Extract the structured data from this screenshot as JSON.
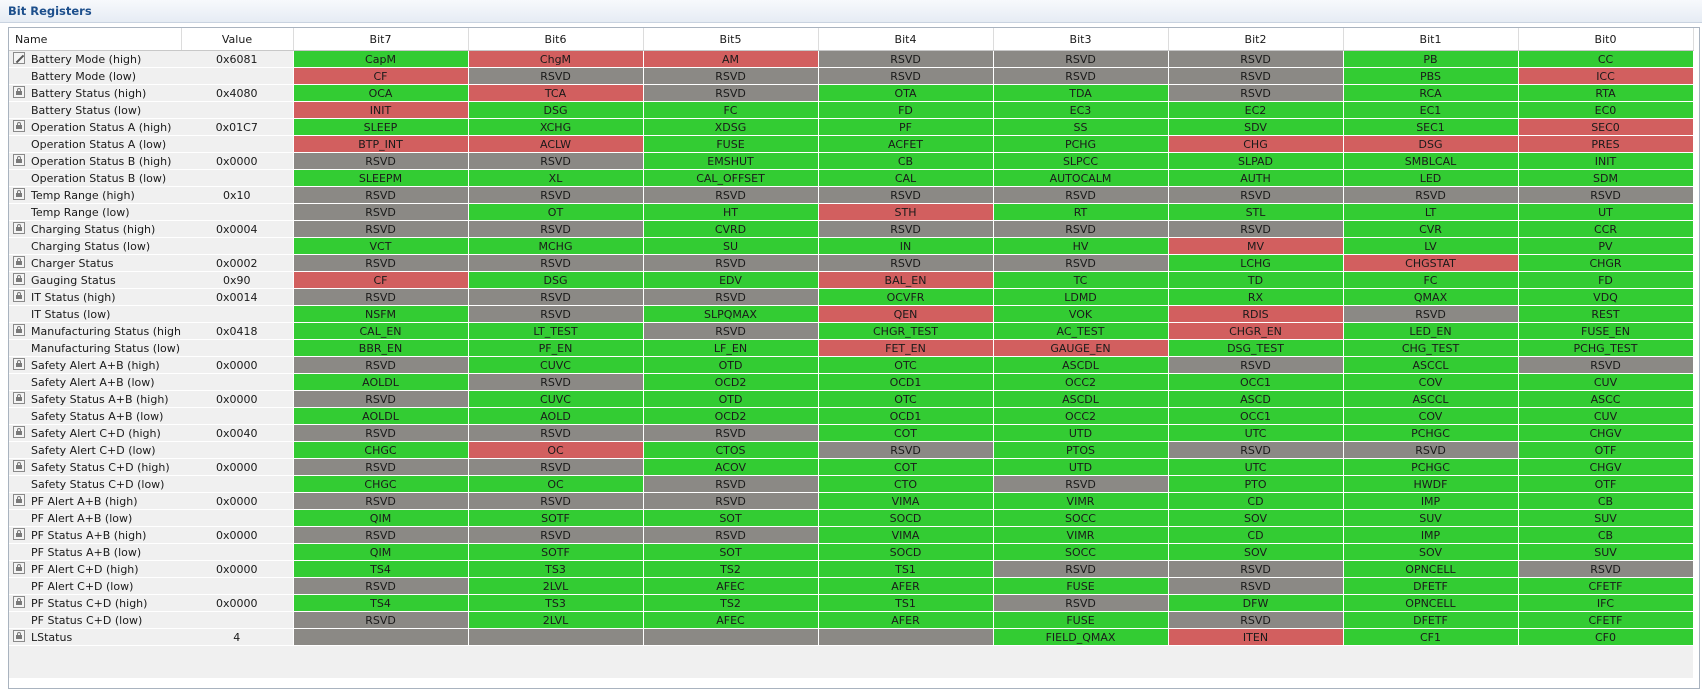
{
  "panel": {
    "title": "Bit Registers"
  },
  "columns": [
    "Name",
    "Value",
    "Bit7",
    "Bit6",
    "Bit5",
    "Bit4",
    "Bit3",
    "Bit2",
    "Bit1",
    "Bit0"
  ],
  "colors": {
    "set": "#33cc33",
    "flag": "#d25f5f",
    "reserved": "#8b8985"
  },
  "rows": [
    {
      "name": "Battery Mode (high)",
      "value": "0x6081",
      "icon": "edit-icon",
      "bits": [
        [
          "CapM",
          "g"
        ],
        [
          "ChgM",
          "r"
        ],
        [
          "AM",
          "r"
        ],
        [
          "RSVD",
          "x"
        ],
        [
          "RSVD",
          "x"
        ],
        [
          "RSVD",
          "x"
        ],
        [
          "PB",
          "g"
        ],
        [
          "CC",
          "g"
        ]
      ]
    },
    {
      "name": "Battery Mode (low)",
      "value": "",
      "icon": "",
      "bits": [
        [
          "CF",
          "r"
        ],
        [
          "RSVD",
          "x"
        ],
        [
          "RSVD",
          "x"
        ],
        [
          "RSVD",
          "x"
        ],
        [
          "RSVD",
          "x"
        ],
        [
          "RSVD",
          "x"
        ],
        [
          "PBS",
          "g"
        ],
        [
          "ICC",
          "r"
        ]
      ]
    },
    {
      "name": "Battery Status (high)",
      "value": "0x4080",
      "icon": "lock-icon",
      "bits": [
        [
          "OCA",
          "g"
        ],
        [
          "TCA",
          "r"
        ],
        [
          "RSVD",
          "x"
        ],
        [
          "OTA",
          "g"
        ],
        [
          "TDA",
          "g"
        ],
        [
          "RSVD",
          "x"
        ],
        [
          "RCA",
          "g"
        ],
        [
          "RTA",
          "g"
        ]
      ]
    },
    {
      "name": "Battery Status (low)",
      "value": "",
      "icon": "",
      "bits": [
        [
          "INIT",
          "r"
        ],
        [
          "DSG",
          "g"
        ],
        [
          "FC",
          "g"
        ],
        [
          "FD",
          "g"
        ],
        [
          "EC3",
          "g"
        ],
        [
          "EC2",
          "g"
        ],
        [
          "EC1",
          "g"
        ],
        [
          "EC0",
          "g"
        ]
      ]
    },
    {
      "name": "Operation Status A (high)",
      "value": "0x01C7",
      "icon": "lock-icon",
      "bits": [
        [
          "SLEEP",
          "g"
        ],
        [
          "XCHG",
          "g"
        ],
        [
          "XDSG",
          "g"
        ],
        [
          "PF",
          "g"
        ],
        [
          "SS",
          "g"
        ],
        [
          "SDV",
          "g"
        ],
        [
          "SEC1",
          "g"
        ],
        [
          "SEC0",
          "r"
        ]
      ]
    },
    {
      "name": "Operation Status A (low)",
      "value": "",
      "icon": "",
      "bits": [
        [
          "BTP_INT",
          "r"
        ],
        [
          "ACLW",
          "r"
        ],
        [
          "FUSE",
          "g"
        ],
        [
          "ACFET",
          "g"
        ],
        [
          "PCHG",
          "g"
        ],
        [
          "CHG",
          "r"
        ],
        [
          "DSG",
          "r"
        ],
        [
          "PRES",
          "r"
        ]
      ]
    },
    {
      "name": "Operation Status B (high)",
      "value": "0x0000",
      "icon": "lock-icon",
      "bits": [
        [
          "RSVD",
          "x"
        ],
        [
          "RSVD",
          "x"
        ],
        [
          "EMSHUT",
          "g"
        ],
        [
          "CB",
          "g"
        ],
        [
          "SLPCC",
          "g"
        ],
        [
          "SLPAD",
          "g"
        ],
        [
          "SMBLCAL",
          "g"
        ],
        [
          "INIT",
          "g"
        ]
      ]
    },
    {
      "name": "Operation Status B (low)",
      "value": "",
      "icon": "",
      "bits": [
        [
          "SLEEPM",
          "g"
        ],
        [
          "XL",
          "g"
        ],
        [
          "CAL_OFFSET",
          "g"
        ],
        [
          "CAL",
          "g"
        ],
        [
          "AUTOCALM",
          "g"
        ],
        [
          "AUTH",
          "g"
        ],
        [
          "LED",
          "g"
        ],
        [
          "SDM",
          "g"
        ]
      ]
    },
    {
      "name": "Temp Range (high)",
      "value": "0x10",
      "icon": "lock-icon",
      "bits": [
        [
          "RSVD",
          "x"
        ],
        [
          "RSVD",
          "x"
        ],
        [
          "RSVD",
          "x"
        ],
        [
          "RSVD",
          "x"
        ],
        [
          "RSVD",
          "x"
        ],
        [
          "RSVD",
          "x"
        ],
        [
          "RSVD",
          "x"
        ],
        [
          "RSVD",
          "x"
        ]
      ]
    },
    {
      "name": "Temp Range (low)",
      "value": "",
      "icon": "",
      "bits": [
        [
          "RSVD",
          "x"
        ],
        [
          "OT",
          "g"
        ],
        [
          "HT",
          "g"
        ],
        [
          "STH",
          "r"
        ],
        [
          "RT",
          "g"
        ],
        [
          "STL",
          "g"
        ],
        [
          "LT",
          "g"
        ],
        [
          "UT",
          "g"
        ]
      ]
    },
    {
      "name": "Charging Status (high)",
      "value": "0x0004",
      "icon": "lock-icon",
      "bits": [
        [
          "RSVD",
          "x"
        ],
        [
          "RSVD",
          "x"
        ],
        [
          "CVRD",
          "g"
        ],
        [
          "RSVD",
          "x"
        ],
        [
          "RSVD",
          "x"
        ],
        [
          "RSVD",
          "x"
        ],
        [
          "CVR",
          "g"
        ],
        [
          "CCR",
          "g"
        ]
      ]
    },
    {
      "name": "Charging Status (low)",
      "value": "",
      "icon": "",
      "bits": [
        [
          "VCT",
          "g"
        ],
        [
          "MCHG",
          "g"
        ],
        [
          "SU",
          "g"
        ],
        [
          "IN",
          "g"
        ],
        [
          "HV",
          "g"
        ],
        [
          "MV",
          "r"
        ],
        [
          "LV",
          "g"
        ],
        [
          "PV",
          "g"
        ]
      ]
    },
    {
      "name": "Charger Status",
      "value": "0x0002",
      "icon": "lock-icon",
      "bits": [
        [
          "RSVD",
          "x"
        ],
        [
          "RSVD",
          "x"
        ],
        [
          "RSVD",
          "x"
        ],
        [
          "RSVD",
          "x"
        ],
        [
          "RSVD",
          "x"
        ],
        [
          "LCHG",
          "g"
        ],
        [
          "CHGSTAT",
          "r"
        ],
        [
          "CHGR",
          "g"
        ]
      ]
    },
    {
      "name": "Gauging Status",
      "value": "0x90",
      "icon": "lock-icon",
      "bits": [
        [
          "CF",
          "r"
        ],
        [
          "DSG",
          "g"
        ],
        [
          "EDV",
          "g"
        ],
        [
          "BAL_EN",
          "r"
        ],
        [
          "TC",
          "g"
        ],
        [
          "TD",
          "g"
        ],
        [
          "FC",
          "g"
        ],
        [
          "FD",
          "g"
        ]
      ]
    },
    {
      "name": "IT Status (high)",
      "value": "0x0014",
      "icon": "lock-icon",
      "bits": [
        [
          "RSVD",
          "x"
        ],
        [
          "RSVD",
          "x"
        ],
        [
          "RSVD",
          "x"
        ],
        [
          "OCVFR",
          "g"
        ],
        [
          "LDMD",
          "g"
        ],
        [
          "RX",
          "g"
        ],
        [
          "QMAX",
          "g"
        ],
        [
          "VDQ",
          "g"
        ]
      ]
    },
    {
      "name": "IT Status (low)",
      "value": "",
      "icon": "",
      "bits": [
        [
          "NSFM",
          "g"
        ],
        [
          "RSVD",
          "x"
        ],
        [
          "SLPQMAX",
          "g"
        ],
        [
          "QEN",
          "r"
        ],
        [
          "VOK",
          "g"
        ],
        [
          "RDIS",
          "r"
        ],
        [
          "RSVD",
          "x"
        ],
        [
          "REST",
          "g"
        ]
      ]
    },
    {
      "name": "Manufacturing Status (high)",
      "value": "0x0418",
      "icon": "lock-icon",
      "bits": [
        [
          "CAL_EN",
          "g"
        ],
        [
          "LT_TEST",
          "g"
        ],
        [
          "RSVD",
          "x"
        ],
        [
          "CHGR_TEST",
          "g"
        ],
        [
          "AC_TEST",
          "g"
        ],
        [
          "CHGR_EN",
          "r"
        ],
        [
          "LED_EN",
          "g"
        ],
        [
          "FUSE_EN",
          "g"
        ]
      ]
    },
    {
      "name": "Manufacturing Status (low)",
      "value": "",
      "icon": "",
      "bits": [
        [
          "BBR_EN",
          "g"
        ],
        [
          "PF_EN",
          "g"
        ],
        [
          "LF_EN",
          "g"
        ],
        [
          "FET_EN",
          "r"
        ],
        [
          "GAUGE_EN",
          "r"
        ],
        [
          "DSG_TEST",
          "g"
        ],
        [
          "CHG_TEST",
          "g"
        ],
        [
          "PCHG_TEST",
          "g"
        ]
      ]
    },
    {
      "name": "Safety Alert A+B (high)",
      "value": "0x0000",
      "icon": "lock-icon",
      "bits": [
        [
          "RSVD",
          "x"
        ],
        [
          "CUVC",
          "g"
        ],
        [
          "OTD",
          "g"
        ],
        [
          "OTC",
          "g"
        ],
        [
          "ASCDL",
          "g"
        ],
        [
          "RSVD",
          "x"
        ],
        [
          "ASCCL",
          "g"
        ],
        [
          "RSVD",
          "x"
        ]
      ]
    },
    {
      "name": "Safety Alert A+B (low)",
      "value": "",
      "icon": "",
      "bits": [
        [
          "AOLDL",
          "g"
        ],
        [
          "RSVD",
          "x"
        ],
        [
          "OCD2",
          "g"
        ],
        [
          "OCD1",
          "g"
        ],
        [
          "OCC2",
          "g"
        ],
        [
          "OCC1",
          "g"
        ],
        [
          "COV",
          "g"
        ],
        [
          "CUV",
          "g"
        ]
      ]
    },
    {
      "name": "Safety Status A+B (high)",
      "value": "0x0000",
      "icon": "lock-icon",
      "bits": [
        [
          "RSVD",
          "x"
        ],
        [
          "CUVC",
          "g"
        ],
        [
          "OTD",
          "g"
        ],
        [
          "OTC",
          "g"
        ],
        [
          "ASCDL",
          "g"
        ],
        [
          "ASCD",
          "g"
        ],
        [
          "ASCCL",
          "g"
        ],
        [
          "ASCC",
          "g"
        ]
      ]
    },
    {
      "name": "Safety Status A+B (low)",
      "value": "",
      "icon": "",
      "bits": [
        [
          "AOLDL",
          "g"
        ],
        [
          "AOLD",
          "g"
        ],
        [
          "OCD2",
          "g"
        ],
        [
          "OCD1",
          "g"
        ],
        [
          "OCC2",
          "g"
        ],
        [
          "OCC1",
          "g"
        ],
        [
          "COV",
          "g"
        ],
        [
          "CUV",
          "g"
        ]
      ]
    },
    {
      "name": "Safety Alert C+D (high)",
      "value": "0x0040",
      "icon": "lock-icon",
      "bits": [
        [
          "RSVD",
          "x"
        ],
        [
          "RSVD",
          "x"
        ],
        [
          "RSVD",
          "x"
        ],
        [
          "COT",
          "g"
        ],
        [
          "UTD",
          "g"
        ],
        [
          "UTC",
          "g"
        ],
        [
          "PCHGC",
          "g"
        ],
        [
          "CHGV",
          "g"
        ]
      ]
    },
    {
      "name": "Safety Alert C+D (low)",
      "value": "",
      "icon": "",
      "bits": [
        [
          "CHGC",
          "g"
        ],
        [
          "OC",
          "r"
        ],
        [
          "CTOS",
          "g"
        ],
        [
          "RSVD",
          "x"
        ],
        [
          "PTOS",
          "g"
        ],
        [
          "RSVD",
          "x"
        ],
        [
          "RSVD",
          "x"
        ],
        [
          "OTF",
          "g"
        ]
      ]
    },
    {
      "name": "Safety Status C+D (high)",
      "value": "0x0000",
      "icon": "lock-icon",
      "bits": [
        [
          "RSVD",
          "x"
        ],
        [
          "RSVD",
          "x"
        ],
        [
          "ACOV",
          "g"
        ],
        [
          "COT",
          "g"
        ],
        [
          "UTD",
          "g"
        ],
        [
          "UTC",
          "g"
        ],
        [
          "PCHGC",
          "g"
        ],
        [
          "CHGV",
          "g"
        ]
      ]
    },
    {
      "name": "Safety Status C+D (low)",
      "value": "",
      "icon": "",
      "bits": [
        [
          "CHGC",
          "g"
        ],
        [
          "OC",
          "g"
        ],
        [
          "RSVD",
          "x"
        ],
        [
          "CTO",
          "g"
        ],
        [
          "RSVD",
          "x"
        ],
        [
          "PTO",
          "g"
        ],
        [
          "HWDF",
          "g"
        ],
        [
          "OTF",
          "g"
        ]
      ]
    },
    {
      "name": "PF Alert A+B (high)",
      "value": "0x0000",
      "icon": "lock-icon",
      "bits": [
        [
          "RSVD",
          "x"
        ],
        [
          "RSVD",
          "x"
        ],
        [
          "RSVD",
          "x"
        ],
        [
          "VIMA",
          "g"
        ],
        [
          "VIMR",
          "g"
        ],
        [
          "CD",
          "g"
        ],
        [
          "IMP",
          "g"
        ],
        [
          "CB",
          "g"
        ]
      ]
    },
    {
      "name": "PF Alert A+B (low)",
      "value": "",
      "icon": "",
      "bits": [
        [
          "QIM",
          "g"
        ],
        [
          "SOTF",
          "g"
        ],
        [
          "SOT",
          "g"
        ],
        [
          "SOCD",
          "g"
        ],
        [
          "SOCC",
          "g"
        ],
        [
          "SOV",
          "g"
        ],
        [
          "SUV",
          "g"
        ],
        [
          "SUV",
          "g"
        ]
      ]
    },
    {
      "name": "PF Status A+B (high)",
      "value": "0x0000",
      "icon": "lock-icon",
      "bits": [
        [
          "RSVD",
          "x"
        ],
        [
          "RSVD",
          "x"
        ],
        [
          "RSVD",
          "x"
        ],
        [
          "VIMA",
          "g"
        ],
        [
          "VIMR",
          "g"
        ],
        [
          "CD",
          "g"
        ],
        [
          "IMP",
          "g"
        ],
        [
          "CB",
          "g"
        ]
      ]
    },
    {
      "name": "PF Status A+B (low)",
      "value": "",
      "icon": "",
      "bits": [
        [
          "QIM",
          "g"
        ],
        [
          "SOTF",
          "g"
        ],
        [
          "SOT",
          "g"
        ],
        [
          "SOCD",
          "g"
        ],
        [
          "SOCC",
          "g"
        ],
        [
          "SOV",
          "g"
        ],
        [
          "SOV",
          "g"
        ],
        [
          "SUV",
          "g"
        ]
      ]
    },
    {
      "name": "PF Alert C+D (high)",
      "value": "0x0000",
      "icon": "lock-icon",
      "bits": [
        [
          "TS4",
          "g"
        ],
        [
          "TS3",
          "g"
        ],
        [
          "TS2",
          "g"
        ],
        [
          "TS1",
          "g"
        ],
        [
          "RSVD",
          "x"
        ],
        [
          "RSVD",
          "x"
        ],
        [
          "OPNCELL",
          "g"
        ],
        [
          "RSVD",
          "x"
        ]
      ]
    },
    {
      "name": "PF Alert C+D (low)",
      "value": "",
      "icon": "",
      "bits": [
        [
          "RSVD",
          "x"
        ],
        [
          "2LVL",
          "g"
        ],
        [
          "AFEC",
          "g"
        ],
        [
          "AFER",
          "g"
        ],
        [
          "FUSE",
          "g"
        ],
        [
          "RSVD",
          "x"
        ],
        [
          "DFETF",
          "g"
        ],
        [
          "CFETF",
          "g"
        ]
      ]
    },
    {
      "name": "PF Status C+D (high)",
      "value": "0x0000",
      "icon": "lock-icon",
      "bits": [
        [
          "TS4",
          "g"
        ],
        [
          "TS3",
          "g"
        ],
        [
          "TS2",
          "g"
        ],
        [
          "TS1",
          "g"
        ],
        [
          "RSVD",
          "x"
        ],
        [
          "DFW",
          "g"
        ],
        [
          "OPNCELL",
          "g"
        ],
        [
          "IFC",
          "g"
        ]
      ]
    },
    {
      "name": "PF Status C+D (low)",
      "value": "",
      "icon": "",
      "bits": [
        [
          "RSVD",
          "x"
        ],
        [
          "2LVL",
          "g"
        ],
        [
          "AFEC",
          "g"
        ],
        [
          "AFER",
          "g"
        ],
        [
          "FUSE",
          "g"
        ],
        [
          "RSVD",
          "x"
        ],
        [
          "DFETF",
          "g"
        ],
        [
          "CFETF",
          "g"
        ]
      ]
    },
    {
      "name": "LStatus",
      "value": "4",
      "icon": "lock-icon",
      "bits": [
        [
          "",
          "x"
        ],
        [
          "",
          "x"
        ],
        [
          "",
          "x"
        ],
        [
          "",
          "x"
        ],
        [
          "FIELD_QMAX",
          "g"
        ],
        [
          "ITEN",
          "r"
        ],
        [
          "CF1",
          "g"
        ],
        [
          "CF0",
          "g"
        ]
      ]
    }
  ]
}
